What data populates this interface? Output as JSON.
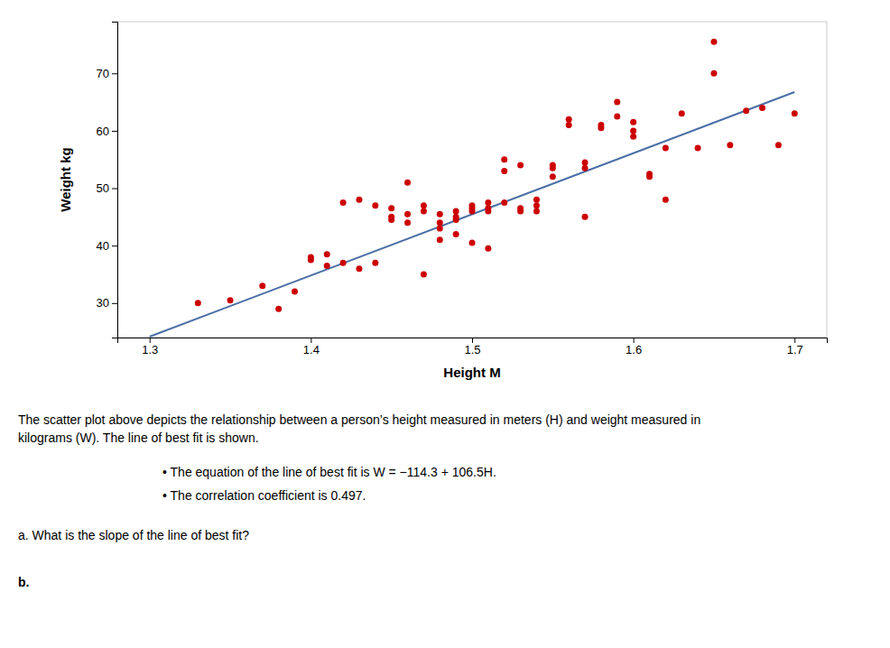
{
  "chart_data": {
    "type": "scatter",
    "xlabel": "Height M",
    "ylabel": "Weight kg",
    "series": [
      {
        "type": "scatter",
        "color": "#cc0000",
        "marker": "circle",
        "x": [
          1.33,
          1.35,
          1.37,
          1.38,
          1.39,
          1.4,
          1.4,
          1.41,
          1.41,
          1.42,
          1.42,
          1.43,
          1.43,
          1.44,
          1.44,
          1.45,
          1.45,
          1.45,
          1.46,
          1.46,
          1.46,
          1.47,
          1.47,
          1.47,
          1.48,
          1.48,
          1.48,
          1.48,
          1.49,
          1.49,
          1.49,
          1.49,
          1.5,
          1.5,
          1.5,
          1.5,
          1.51,
          1.51,
          1.51,
          1.51,
          1.52,
          1.52,
          1.52,
          1.53,
          1.53,
          1.53,
          1.54,
          1.54,
          1.54,
          1.55,
          1.55,
          1.55,
          1.56,
          1.56,
          1.57,
          1.57,
          1.57,
          1.58,
          1.58,
          1.59,
          1.59,
          1.6,
          1.6,
          1.6,
          1.61,
          1.61,
          1.62,
          1.62,
          1.63,
          1.64,
          1.65,
          1.65,
          1.66,
          1.67,
          1.68,
          1.69,
          1.7
        ],
        "values": [
          30.0,
          30.5,
          33.0,
          29.0,
          32.0,
          37.5,
          38.0,
          38.5,
          36.5,
          37.0,
          47.5,
          48.0,
          36.0,
          37.0,
          47.0,
          46.5,
          44.5,
          45.0,
          45.5,
          44.0,
          51.0,
          47.0,
          46.0,
          35.0,
          44.0,
          43.0,
          45.5,
          41.0,
          46.0,
          45.0,
          44.5,
          42.0,
          46.0,
          47.0,
          46.5,
          40.5,
          46.0,
          47.5,
          46.5,
          39.5,
          47.5,
          53.0,
          55.0,
          46.0,
          46.5,
          54.0,
          48.0,
          46.0,
          47.0,
          52.0,
          54.0,
          53.5,
          61.0,
          62.0,
          54.5,
          53.5,
          45.0,
          60.5,
          61.0,
          62.5,
          65.0,
          60.0,
          61.5,
          59.0,
          52.5,
          52.0,
          57.0,
          48.0,
          63.0,
          57.0,
          75.5,
          70.0,
          57.5,
          63.5,
          64.0,
          57.5,
          63.0
        ]
      },
      {
        "type": "line",
        "color": "#4a6fa5",
        "line_style": "solid",
        "x": [
          1.3,
          1.7
        ],
        "values": [
          24.15,
          66.75
        ]
      }
    ],
    "xlim": [
      1.28,
      1.72
    ],
    "ylim": [
      24,
      79
    ],
    "xticks": [
      1.3,
      1.4,
      1.5,
      1.6,
      1.7
    ],
    "yticks": [
      30,
      40,
      50,
      60,
      70
    ],
    "grid": false,
    "annotations": [
      "The scatter plot above depicts the relationship between a person’s height measured in meters (H) and weight measured in",
      "kilograms (W). The line of best fit is shown.",
      "•  The equation of the line of best fit is W = −114.3 + 106.5H.",
      "•  The correlation coefficient is 0.497.",
      "a.   What is the slope of the line of best fit?",
      "b."
    ]
  }
}
